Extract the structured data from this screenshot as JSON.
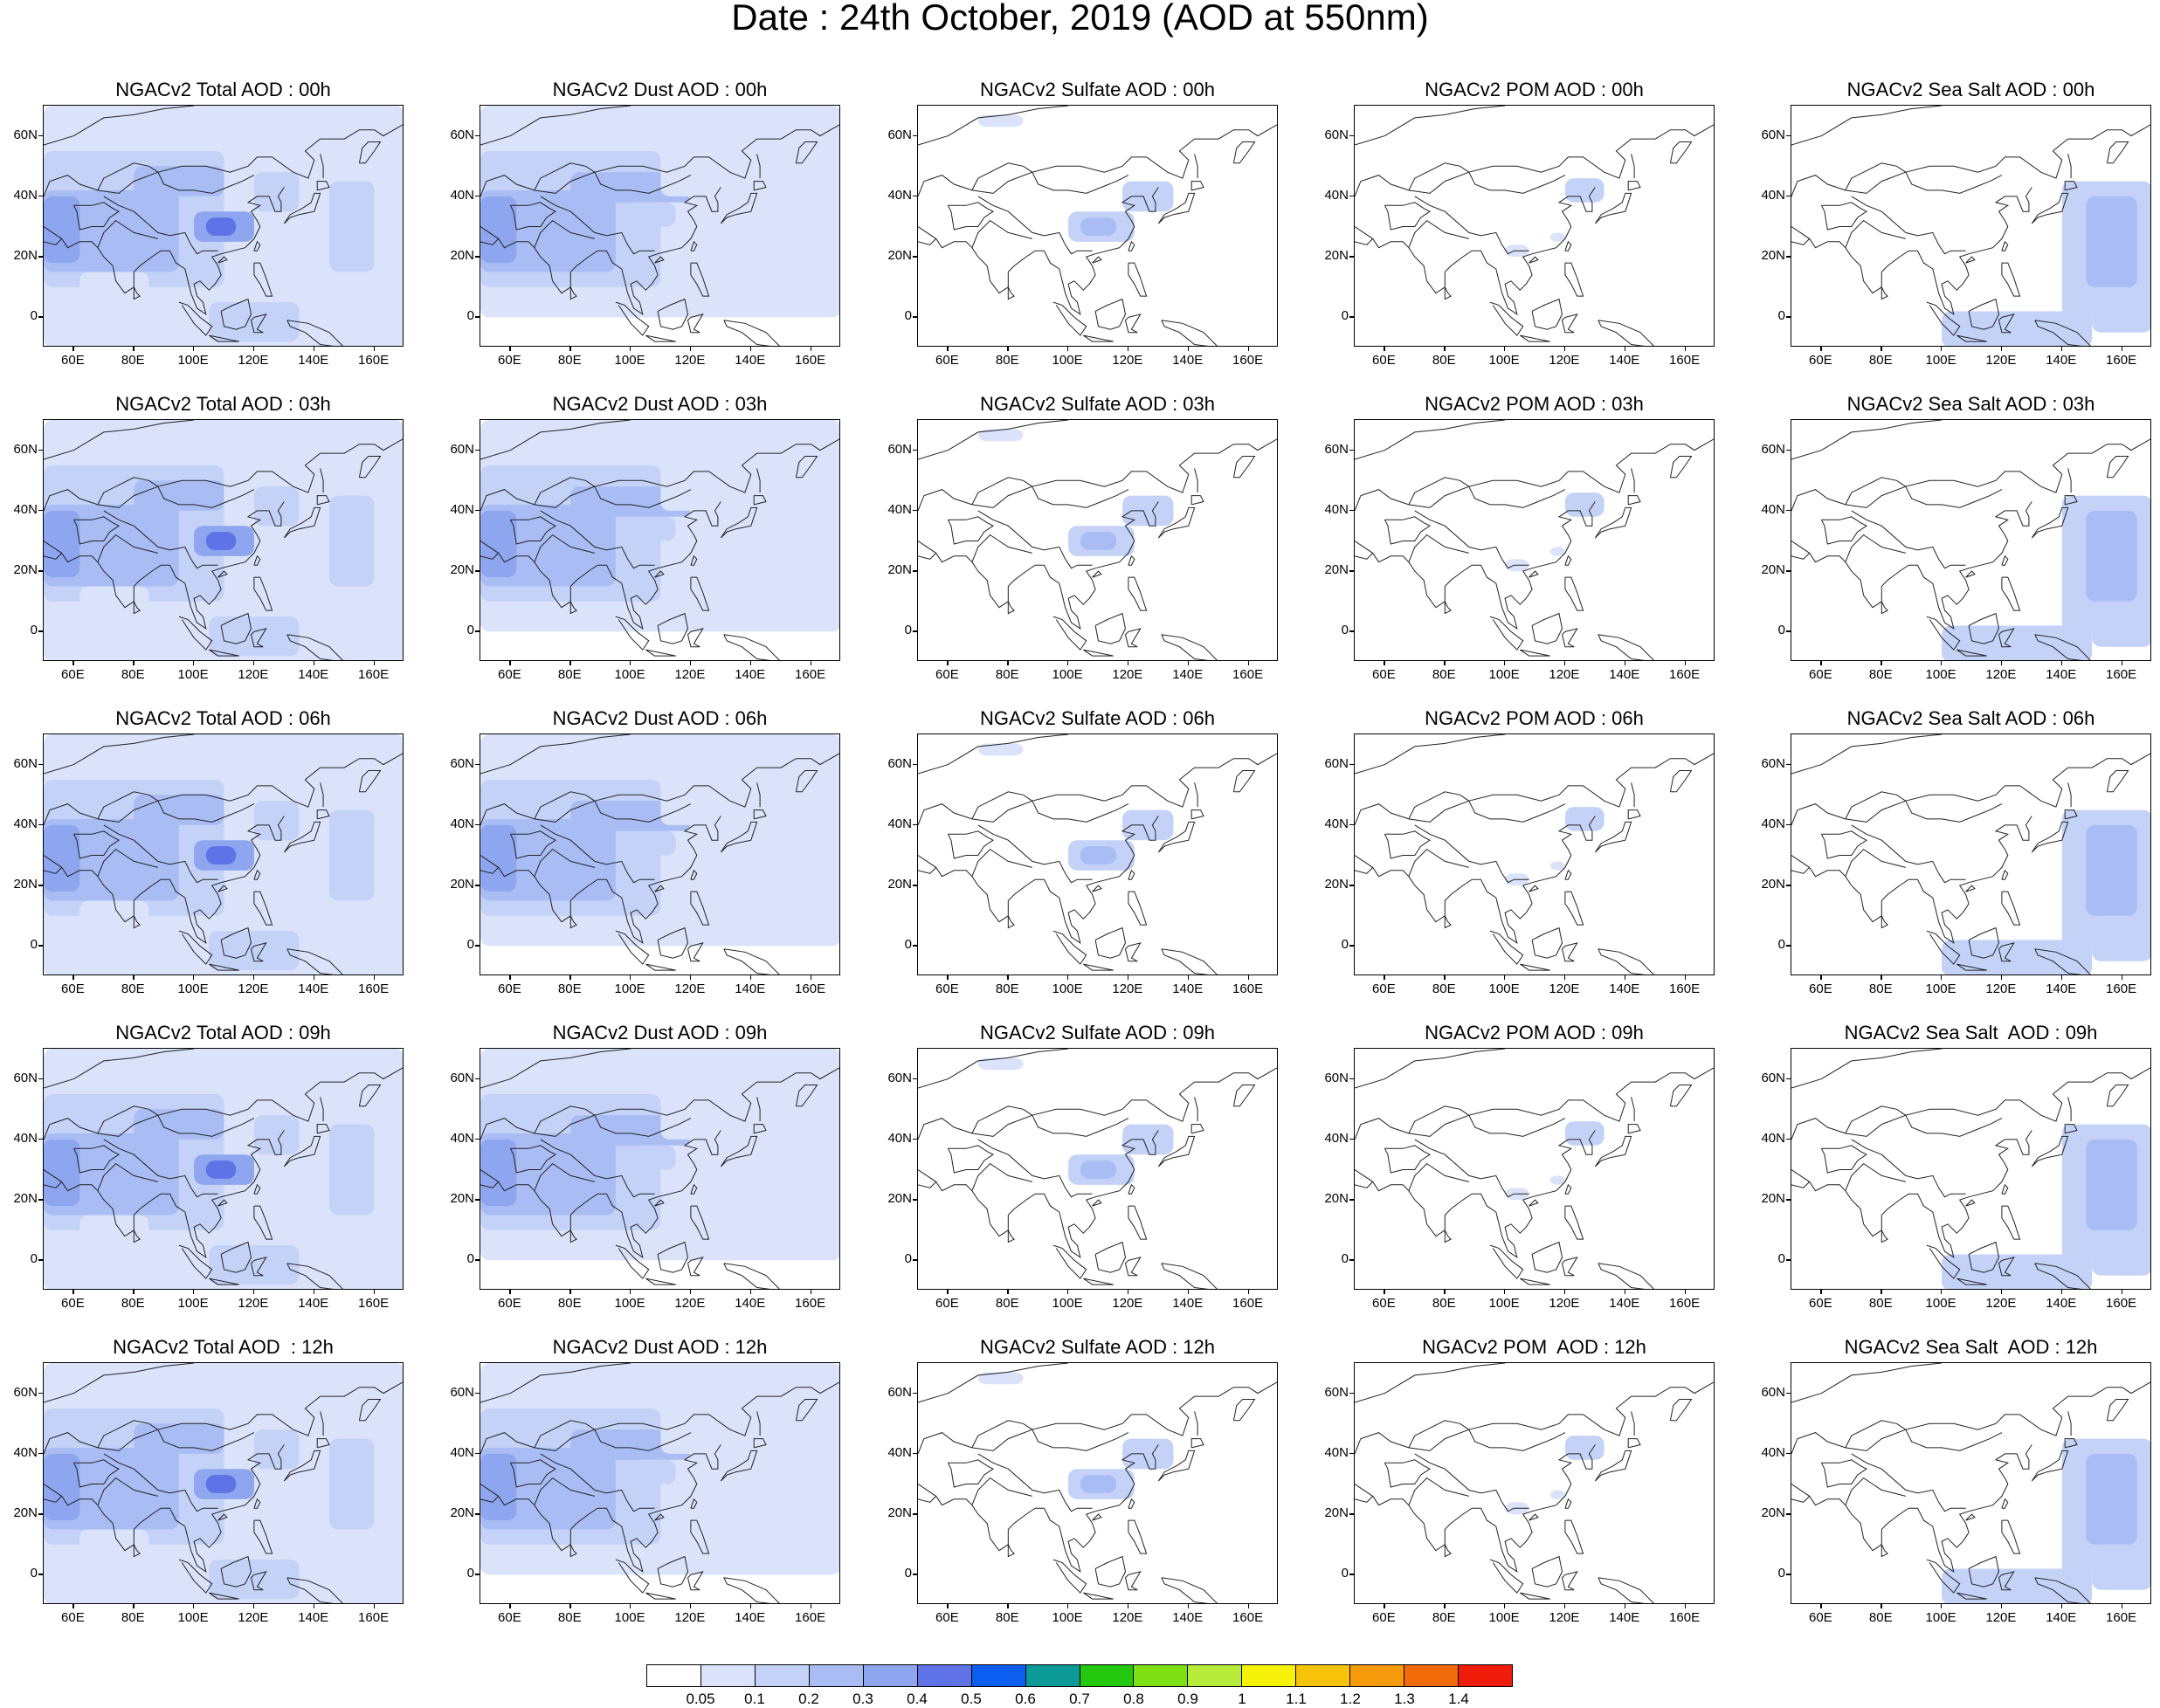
{
  "title": "Date : 24th October, 2019 (AOD at 550nm)",
  "lat_ticks": [
    "60N",
    "40N",
    "20N",
    "0"
  ],
  "lon_ticks": [
    "60E",
    "80E",
    "100E",
    "120E",
    "140E",
    "160E"
  ],
  "panels": [
    [
      "NGACv2 Total AOD : 00h",
      "NGACv2 Dust AOD : 00h",
      "NGACv2 Sulfate AOD : 00h",
      "NGACv2 POM AOD : 00h",
      "NGACv2 Sea Salt AOD : 00h"
    ],
    [
      "NGACv2 Total AOD : 03h",
      "NGACv2 Dust AOD : 03h",
      "NGACv2 Sulfate AOD : 03h",
      "NGACv2 POM AOD : 03h",
      "NGACv2 Sea Salt AOD : 03h"
    ],
    [
      "NGACv2 Total AOD : 06h",
      "NGACv2 Dust AOD : 06h",
      "NGACv2 Sulfate AOD : 06h",
      "NGACv2 POM AOD : 06h",
      "NGACv2 Sea Salt AOD : 06h"
    ],
    [
      "NGACv2 Total AOD : 09h",
      "NGACv2 Dust AOD : 09h",
      "NGACv2 Sulfate AOD : 09h",
      "NGACv2 POM AOD : 09h",
      "NGACv2 Sea Salt  AOD : 09h"
    ],
    [
      "NGACv2 Total AOD  : 12h",
      "NGACv2 Dust AOD : 12h",
      "NGACv2 Sulfate AOD : 12h",
      "NGACv2 POM  AOD : 12h",
      "NGACv2 Sea Salt  AOD : 12h"
    ]
  ],
  "colorbar": {
    "labels": [
      "0.05",
      "0.1",
      "0.2",
      "0.3",
      "0.4",
      "0.5",
      "0.6",
      "0.7",
      "0.8",
      "0.9",
      "1",
      "1.1",
      "1.2",
      "1.3",
      "1.4"
    ],
    "colors": [
      "#ffffff",
      "#dbe3fb",
      "#c4d2f8",
      "#a9bdf4",
      "#8ea6ef",
      "#5f73e6",
      "#0b5ef0",
      "#0b9a96",
      "#23c80f",
      "#7ee014",
      "#b8ec3a",
      "#f6f20a",
      "#f7c20a",
      "#f59a0a",
      "#f26b0a",
      "#ef1c0a"
    ]
  }
}
